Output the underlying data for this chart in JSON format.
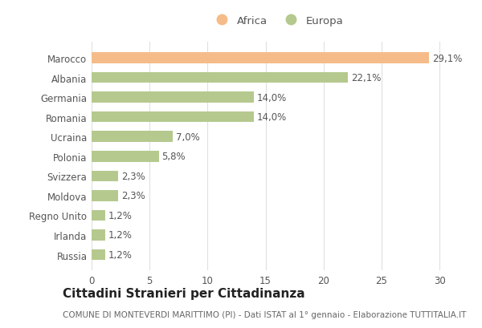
{
  "categories": [
    "Marocco",
    "Albania",
    "Germania",
    "Romania",
    "Ucraina",
    "Polonia",
    "Svizzera",
    "Moldova",
    "Regno Unito",
    "Irlanda",
    "Russia"
  ],
  "values": [
    29.1,
    22.1,
    14.0,
    14.0,
    7.0,
    5.8,
    2.3,
    2.3,
    1.2,
    1.2,
    1.2
  ],
  "labels": [
    "29,1%",
    "22,1%",
    "14,0%",
    "14,0%",
    "7,0%",
    "5,8%",
    "2,3%",
    "2,3%",
    "1,2%",
    "1,2%",
    "1,2%"
  ],
  "colors": [
    "#f5bc8a",
    "#b5c98e",
    "#b5c98e",
    "#b5c98e",
    "#b5c98e",
    "#b5c98e",
    "#b5c98e",
    "#b5c98e",
    "#b5c98e",
    "#b5c98e",
    "#b5c98e"
  ],
  "legend_labels": [
    "Africa",
    "Europa"
  ],
  "legend_colors": [
    "#f5bc8a",
    "#b5c98e"
  ],
  "title": "Cittadini Stranieri per Cittadinanza",
  "subtitle": "COMUNE DI MONTEVERDI MARITTIMO (PI) - Dati ISTAT al 1° gennaio - Elaborazione TUTTITALIA.IT",
  "xlim": [
    0,
    32
  ],
  "xticks": [
    0,
    5,
    10,
    15,
    20,
    25,
    30
  ],
  "background_color": "#ffffff",
  "grid_color": "#e0e0e0",
  "bar_height": 0.55,
  "label_fontsize": 8.5,
  "title_fontsize": 11,
  "subtitle_fontsize": 7.5,
  "ytick_fontsize": 8.5,
  "xtick_fontsize": 8.5
}
